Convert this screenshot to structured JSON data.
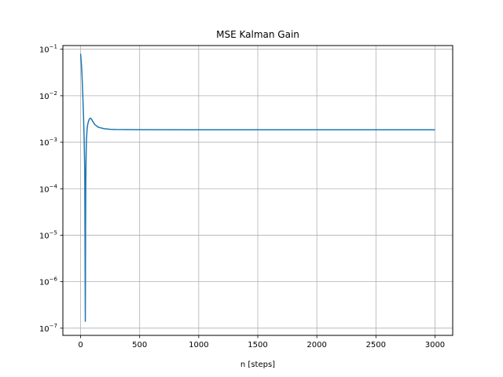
{
  "chart_data": {
    "type": "line",
    "title": "MSE Kalman Gain",
    "xlabel": "n [steps]",
    "ylabel": "",
    "xlim": [
      -150,
      3150
    ],
    "ylim": [
      7e-08,
      0.12
    ],
    "yscale": "log",
    "grid": true,
    "x_ticks": [
      0,
      500,
      1000,
      1500,
      2000,
      2500,
      3000
    ],
    "y_ticks": [
      {
        "value": 1e-07,
        "base": "10",
        "exp": "−7"
      },
      {
        "value": 1e-06,
        "base": "10",
        "exp": "−6"
      },
      {
        "value": 1e-05,
        "base": "10",
        "exp": "−5"
      },
      {
        "value": 0.0001,
        "base": "10",
        "exp": "−4"
      },
      {
        "value": 0.001,
        "base": "10",
        "exp": "−3"
      },
      {
        "value": 0.01,
        "base": "10",
        "exp": "−2"
      },
      {
        "value": 0.1,
        "base": "10",
        "exp": "−1"
      }
    ],
    "series": [
      {
        "color": "#1f77b4",
        "x": [
          0,
          5,
          10,
          15,
          20,
          25,
          30,
          35,
          40,
          42,
          44,
          46,
          48,
          50,
          55,
          60,
          70,
          80,
          90,
          100,
          120,
          150,
          200,
          250,
          300,
          500,
          1000,
          1500,
          2000,
          2500,
          3000
        ],
        "y": [
          0.08,
          0.055,
          0.035,
          0.018,
          0.008,
          0.0035,
          0.0012,
          0.00025,
          1.4e-07,
          1e-05,
          0.00012,
          0.0004,
          0.0008,
          0.0012,
          0.0019,
          0.0024,
          0.003,
          0.0033,
          0.0032,
          0.0029,
          0.0024,
          0.0021,
          0.00195,
          0.0019,
          0.00188,
          0.00186,
          0.00185,
          0.00185,
          0.00185,
          0.00185,
          0.00185
        ]
      }
    ]
  }
}
